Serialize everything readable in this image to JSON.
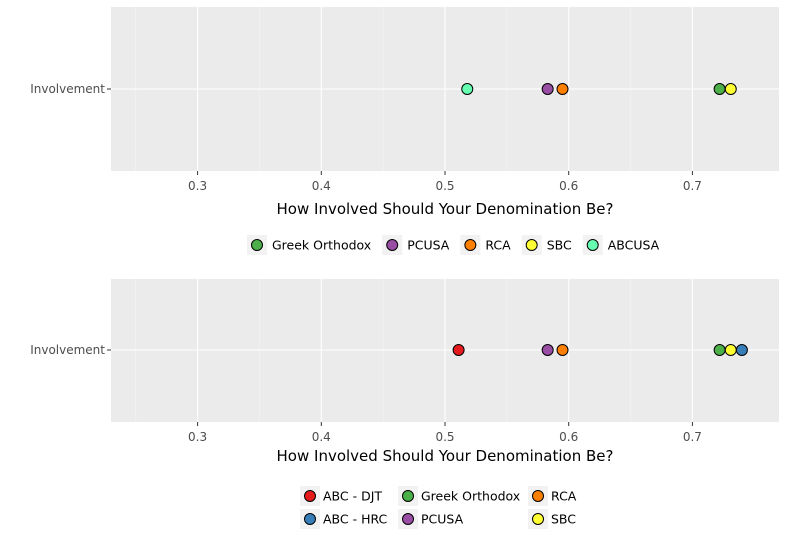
{
  "chart_data": [
    {
      "type": "scatter",
      "xlabel": "How Involved Should Your Denomination Be?",
      "ylabel": "",
      "categories": [
        "Involvement"
      ],
      "xlim": [
        0.23,
        0.77
      ],
      "xticks": [
        0.3,
        0.4,
        0.5,
        0.6,
        0.7
      ],
      "tick_labels": [
        "0.3",
        "0.4",
        "0.5",
        "0.6",
        "0.7"
      ],
      "grid": true,
      "legend_position": "bottom",
      "series": [
        {
          "name": "Greek Orthodox",
          "color": "#4daf4a",
          "values": [
            0.722
          ]
        },
        {
          "name": "PCUSA",
          "color": "#984ea3",
          "values": [
            0.583
          ]
        },
        {
          "name": "RCA",
          "color": "#ff7f00",
          "values": [
            0.595
          ]
        },
        {
          "name": "SBC",
          "color": "#ffff33",
          "values": [
            0.731
          ]
        },
        {
          "name": "ABCUSA",
          "color": "#66ffb2",
          "values": [
            0.518
          ]
        }
      ]
    },
    {
      "type": "scatter",
      "xlabel": "How Involved Should Your Denomination Be?",
      "ylabel": "",
      "categories": [
        "Involvement"
      ],
      "xlim": [
        0.23,
        0.77
      ],
      "xticks": [
        0.3,
        0.4,
        0.5,
        0.6,
        0.7
      ],
      "tick_labels": [
        "0.3",
        "0.4",
        "0.5",
        "0.6",
        "0.7"
      ],
      "grid": true,
      "legend_position": "bottom",
      "series": [
        {
          "name": "ABC - DJT",
          "color": "#e41a1c",
          "values": [
            0.511
          ]
        },
        {
          "name": "ABC - HRC",
          "color": "#377eb8",
          "values": [
            0.74
          ]
        },
        {
          "name": "Greek Orthodox",
          "color": "#4daf4a",
          "values": [
            0.722
          ]
        },
        {
          "name": "PCUSA",
          "color": "#984ea3",
          "values": [
            0.583
          ]
        },
        {
          "name": "RCA",
          "color": "#ff7f00",
          "values": [
            0.595
          ]
        },
        {
          "name": "SBC",
          "color": "#ffff33",
          "values": [
            0.731
          ]
        }
      ]
    }
  ]
}
